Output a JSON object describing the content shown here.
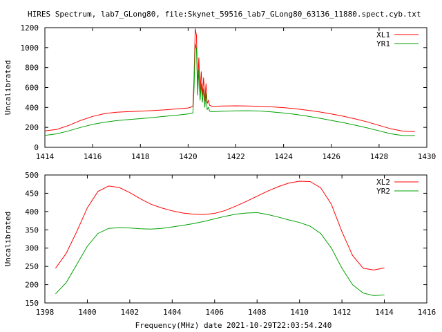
{
  "page_title": "HIRES Spectrum, lab7_GLong80, file:Skynet_59516_lab7_GLong80_63136_11880.spect.cyb.txt",
  "chart_data": [
    {
      "type": "line",
      "ylabel": "Uncalibrated",
      "xlabel": "",
      "xlim": [
        1414,
        1430
      ],
      "ylim": [
        0,
        1200
      ],
      "xticks": [
        1414,
        1416,
        1418,
        1420,
        1422,
        1424,
        1426,
        1428,
        1430
      ],
      "yticks": [
        0,
        200,
        400,
        600,
        800,
        1000,
        1200
      ],
      "legend_position": "top-right",
      "series": [
        {
          "name": "XL1",
          "color": "#ff0000",
          "x": [
            1414.0,
            1414.5,
            1415.0,
            1415.5,
            1416.0,
            1416.5,
            1417.0,
            1417.5,
            1418.0,
            1418.5,
            1419.0,
            1419.5,
            1420.0,
            1420.2,
            1420.25,
            1420.3,
            1420.35,
            1420.4,
            1420.45,
            1420.5,
            1420.55,
            1420.6,
            1420.65,
            1420.7,
            1420.75,
            1420.8,
            1420.85,
            1420.9,
            1421.0,
            1421.5,
            1422.0,
            1422.5,
            1423.0,
            1423.5,
            1424.0,
            1424.5,
            1425.0,
            1425.5,
            1426.0,
            1426.5,
            1427.0,
            1427.5,
            1428.0,
            1428.5,
            1429.0,
            1429.5
          ],
          "y": [
            165,
            180,
            220,
            270,
            310,
            338,
            352,
            358,
            362,
            368,
            375,
            385,
            395,
            410,
            700,
            1190,
            1120,
            600,
            900,
            550,
            760,
            520,
            700,
            460,
            640,
            440,
            470,
            420,
            412,
            414,
            416,
            415,
            412,
            406,
            398,
            387,
            372,
            355,
            335,
            312,
            285,
            255,
            220,
            185,
            162,
            158
          ]
        },
        {
          "name": "YR1",
          "color": "#00a000",
          "x": [
            1414.0,
            1414.5,
            1415.0,
            1415.5,
            1416.0,
            1416.5,
            1417.0,
            1417.5,
            1418.0,
            1418.5,
            1419.0,
            1419.5,
            1420.0,
            1420.2,
            1420.25,
            1420.3,
            1420.35,
            1420.4,
            1420.45,
            1420.5,
            1420.55,
            1420.6,
            1420.65,
            1420.7,
            1420.75,
            1420.8,
            1420.85,
            1420.9,
            1421.0,
            1421.5,
            1422.0,
            1422.5,
            1423.0,
            1423.5,
            1424.0,
            1424.5,
            1425.0,
            1425.5,
            1426.0,
            1426.5,
            1427.0,
            1427.5,
            1428.0,
            1428.5,
            1429.0,
            1429.5
          ],
          "y": [
            120,
            135,
            165,
            200,
            230,
            252,
            268,
            278,
            288,
            298,
            310,
            322,
            335,
            345,
            600,
            1040,
            980,
            520,
            780,
            470,
            640,
            450,
            590,
            400,
            540,
            380,
            400,
            362,
            358,
            362,
            366,
            367,
            364,
            356,
            344,
            330,
            312,
            292,
            270,
            248,
            222,
            195,
            165,
            135,
            118,
            118
          ]
        }
      ]
    },
    {
      "type": "line",
      "ylabel": "Uncalibrated",
      "xlabel": "Frequency(MHz) date 2021-10-29T22:03:54.240",
      "xlim": [
        1398,
        1416
      ],
      "ylim": [
        150,
        500
      ],
      "xticks": [
        1398,
        1400,
        1402,
        1404,
        1406,
        1408,
        1410,
        1412,
        1414,
        1416
      ],
      "yticks": [
        150,
        200,
        250,
        300,
        350,
        400,
        450,
        500
      ],
      "legend_position": "top-right",
      "series": [
        {
          "name": "XL2",
          "color": "#ff0000",
          "x": [
            1398.5,
            1399.0,
            1399.5,
            1400.0,
            1400.5,
            1401.0,
            1401.5,
            1402.0,
            1402.5,
            1403.0,
            1403.5,
            1404.0,
            1404.5,
            1405.0,
            1405.5,
            1406.0,
            1406.5,
            1407.0,
            1407.5,
            1408.0,
            1408.5,
            1409.0,
            1409.5,
            1410.0,
            1410.5,
            1411.0,
            1411.5,
            1412.0,
            1412.5,
            1413.0,
            1413.5,
            1414.0
          ],
          "y": [
            245,
            285,
            345,
            410,
            455,
            470,
            466,
            452,
            435,
            420,
            410,
            402,
            396,
            393,
            392,
            395,
            403,
            415,
            428,
            442,
            456,
            468,
            478,
            483,
            482,
            465,
            420,
            345,
            280,
            245,
            240,
            246
          ]
        },
        {
          "name": "YR2",
          "color": "#00a000",
          "x": [
            1398.5,
            1399.0,
            1399.5,
            1400.0,
            1400.5,
            1401.0,
            1401.5,
            1402.0,
            1402.5,
            1403.0,
            1403.5,
            1404.0,
            1404.5,
            1405.0,
            1405.5,
            1406.0,
            1406.5,
            1407.0,
            1407.5,
            1408.0,
            1408.5,
            1409.0,
            1409.5,
            1410.0,
            1410.5,
            1411.0,
            1411.5,
            1412.0,
            1412.5,
            1413.0,
            1413.5,
            1414.0
          ],
          "y": [
            175,
            205,
            255,
            305,
            340,
            354,
            356,
            355,
            353,
            352,
            354,
            358,
            362,
            367,
            373,
            380,
            387,
            393,
            396,
            397,
            392,
            385,
            377,
            370,
            360,
            340,
            300,
            245,
            200,
            177,
            170,
            172
          ]
        }
      ]
    }
  ]
}
